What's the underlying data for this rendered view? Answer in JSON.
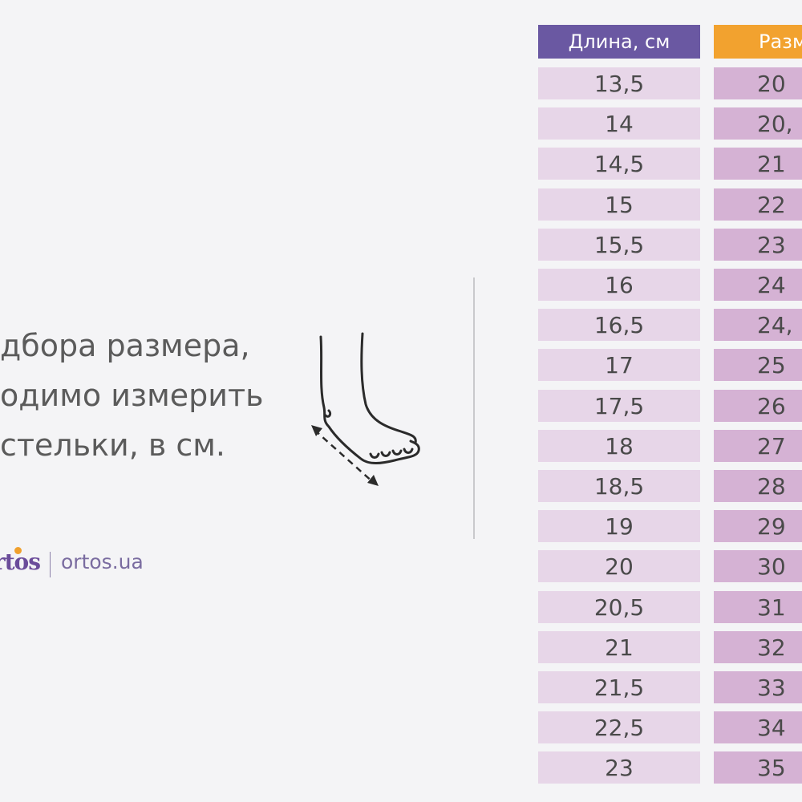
{
  "instruction": {
    "lines": [
      "дбора размера,",
      "одимо измерить",
      "стельки, в см."
    ]
  },
  "brand": {
    "logo_text": "rtos",
    "url": "ortos.ua",
    "colors": {
      "logo": "#6b4c9a",
      "logo_accent": "#f0a02d"
    }
  },
  "illustration": {
    "icon": "foot-measure-icon"
  },
  "table": {
    "headers": {
      "length": "Длина, см",
      "size": "Разм"
    },
    "colors": {
      "length_header": "#6a58a2",
      "size_header": "#f2a22f",
      "length_cell": "#e7d6e8",
      "size_cell": "#d5b2d4"
    },
    "rows": [
      {
        "length": "13,5",
        "size": "20"
      },
      {
        "length": "14",
        "size": "20,"
      },
      {
        "length": "14,5",
        "size": "21"
      },
      {
        "length": "15",
        "size": "22"
      },
      {
        "length": "15,5",
        "size": "23"
      },
      {
        "length": "16",
        "size": "24"
      },
      {
        "length": "16,5",
        "size": "24,"
      },
      {
        "length": "17",
        "size": "25"
      },
      {
        "length": "17,5",
        "size": "26"
      },
      {
        "length": "18",
        "size": "27"
      },
      {
        "length": "18,5",
        "size": "28"
      },
      {
        "length": "19",
        "size": "29"
      },
      {
        "length": "20",
        "size": "30"
      },
      {
        "length": "20,5",
        "size": "31"
      },
      {
        "length": "21",
        "size": "32"
      },
      {
        "length": "21,5",
        "size": "33"
      },
      {
        "length": "22,5",
        "size": "34"
      },
      {
        "length": "23",
        "size": "35"
      }
    ]
  }
}
